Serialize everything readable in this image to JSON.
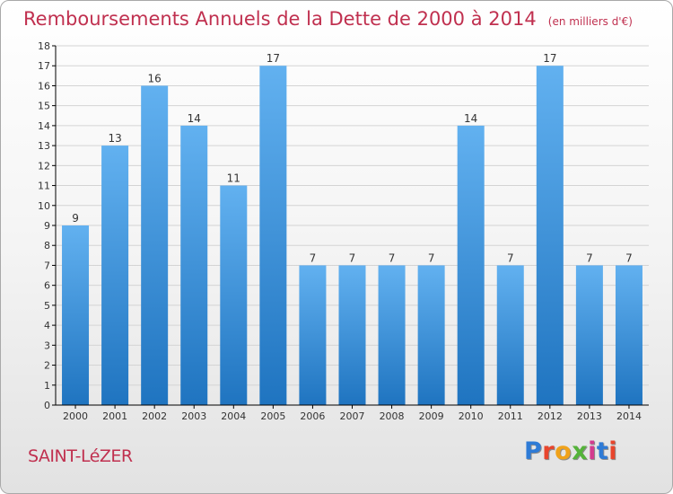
{
  "header": {
    "title": "Remboursements Annuels de la Dette de 2000 à 2014",
    "unit": "(en milliers d'€)"
  },
  "footer": {
    "town": "SAINT-LéZER",
    "brand": "Proxiti",
    "brand_colors": [
      "#2e7bd6",
      "#e8452c",
      "#f0a21a",
      "#55b33a",
      "#d33b8e",
      "#2e7bd6",
      "#e8452c"
    ]
  },
  "colors": {
    "title": "#c0304f",
    "bar_light": "#62b1f0",
    "bar_dark": "#1f74c0",
    "grid": "#d4d4d4",
    "axis": "#000000"
  },
  "chart_data": {
    "type": "bar",
    "title": "Remboursements Annuels de la Dette de 2000 à 2014",
    "subtitle": "(en milliers d'€)",
    "xlabel": "",
    "ylabel": "",
    "categories": [
      "2000",
      "2001",
      "2002",
      "2003",
      "2004",
      "2005",
      "2006",
      "2007",
      "2008",
      "2009",
      "2010",
      "2011",
      "2012",
      "2013",
      "2014"
    ],
    "values": [
      9,
      13,
      16,
      14,
      11,
      17,
      7,
      7,
      7,
      7,
      14,
      7,
      17,
      7,
      7
    ],
    "ylim": [
      0,
      18
    ],
    "yticks": [
      "0",
      "1",
      "2",
      "3",
      "4",
      "5",
      "6",
      "7",
      "8",
      "9",
      "10",
      "11",
      "12",
      "13",
      "14",
      "15",
      "16",
      "17",
      "18"
    ],
    "grid": true,
    "data_labels": true
  }
}
